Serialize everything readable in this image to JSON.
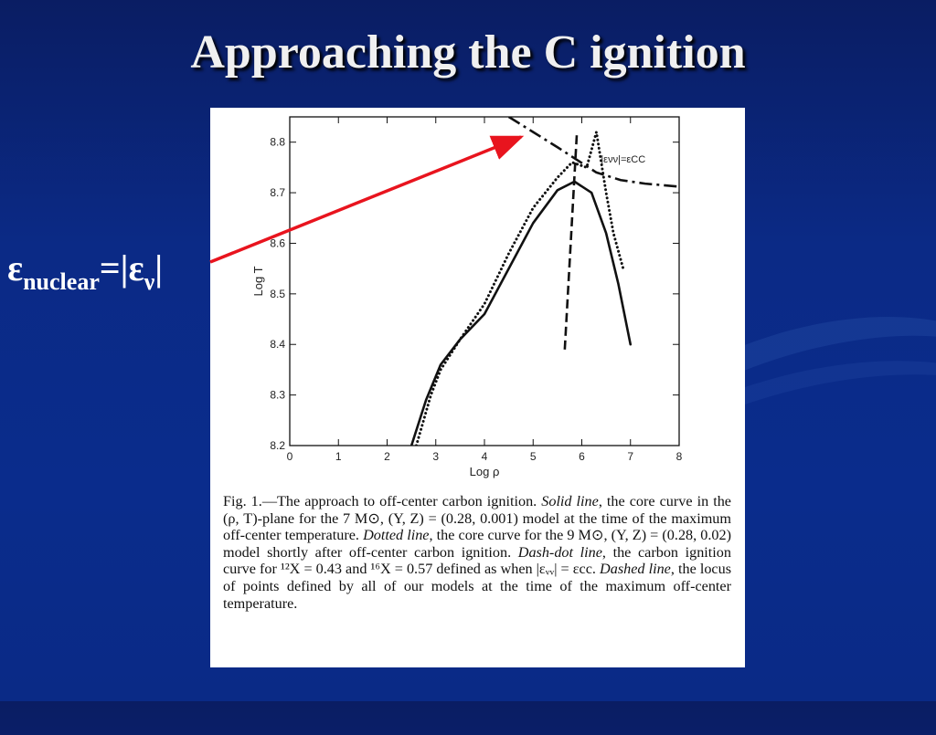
{
  "slide": {
    "title": "Approaching the C ignition",
    "equation": {
      "symbol": "ε",
      "subscript": "nuclear",
      "middle": "=|ε",
      "nu": "ν",
      "end": "|"
    }
  },
  "colors": {
    "background": "#0b2a86",
    "title_text": "#f0f0f0",
    "arrow": "#e8141e",
    "figure_bg": "#ffffff"
  },
  "figure": {
    "caption_parts": {
      "fig": "Fig. 1.",
      "p1": "—The approach to off-center carbon ignition. ",
      "solid": "Solid line",
      "p2": ", the core curve in the (ρ, T)-plane for the 7 M⊙, (Y, Z) = (0.28, 0.001) model at the time of the maximum off-center temperature. ",
      "dotted": "Dotted line",
      "p3": ", the core curve for the 9 M⊙, (Y, Z) = (0.28, 0.02) model shortly after off-center carbon ignition. ",
      "dashdot": "Dash-dot line",
      "p4": ", the carbon ignition curve for ¹²X = 0.43 and ¹⁶X = 0.57 defined as when |εᵥᵥ| = εcc. ",
      "dashed": "Dashed line",
      "p5": ", the locus of points defined by all of our models at the time of the maximum off-center temperature."
    }
  },
  "chart_data": {
    "type": "line",
    "xlabel": "Log ρ",
    "ylabel": "Log T",
    "xlim": [
      0,
      8
    ],
    "ylim": [
      8.2,
      8.85
    ],
    "xticks": [
      "0",
      "1",
      "2",
      "3",
      "4",
      "5",
      "6",
      "7",
      "8"
    ],
    "yticks": [
      "8.2",
      "8.3",
      "8.4",
      "8.5",
      "8.6",
      "8.7",
      "8.8"
    ],
    "grid": false,
    "annotations": [
      {
        "text": "|ενν|=εCC",
        "x": 6.85,
        "y": 8.76
      }
    ],
    "series": [
      {
        "style": "solid",
        "x": [
          2.5,
          2.8,
          3.1,
          3.5,
          4.0,
          4.5,
          5.0,
          5.5,
          5.85,
          6.2,
          6.5,
          6.75,
          7.0
        ],
        "y": [
          8.2,
          8.29,
          8.36,
          8.41,
          8.46,
          8.55,
          8.64,
          8.705,
          8.722,
          8.7,
          8.62,
          8.52,
          8.4
        ]
      },
      {
        "style": "dotted",
        "x": [
          2.6,
          2.9,
          3.1,
          3.5,
          4.0,
          4.5,
          5.0,
          5.5,
          5.8,
          6.1,
          6.3,
          6.5,
          6.65,
          6.85
        ],
        "y": [
          8.2,
          8.3,
          8.35,
          8.41,
          8.48,
          8.58,
          8.67,
          8.73,
          8.76,
          8.75,
          8.82,
          8.7,
          8.62,
          8.55
        ]
      },
      {
        "style": "dash-dot",
        "x": [
          4.5,
          5.0,
          5.5,
          5.9,
          6.3,
          6.8,
          7.3,
          8.0
        ],
        "y": [
          8.85,
          8.82,
          8.79,
          8.765,
          8.74,
          8.725,
          8.718,
          8.712
        ]
      },
      {
        "style": "dashed",
        "x": [
          5.65,
          5.9
        ],
        "y": [
          8.39,
          8.82
        ]
      }
    ]
  }
}
